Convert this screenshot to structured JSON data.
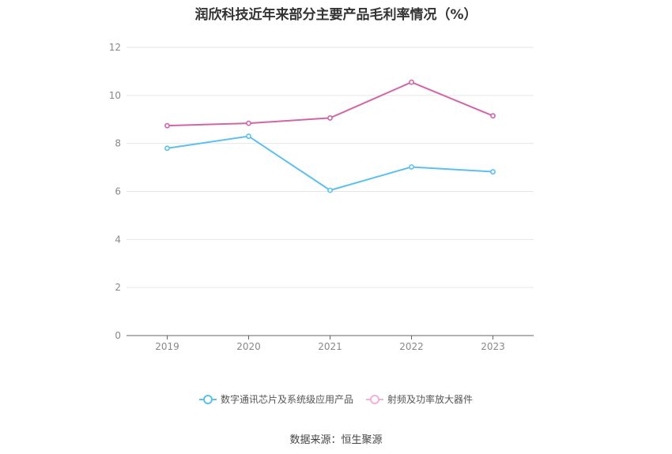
{
  "chart_data": {
    "type": "line",
    "title": "润欣科技近年来部分主要产品毛利率情况（%）",
    "categories": [
      "2019",
      "2020",
      "2021",
      "2022",
      "2023"
    ],
    "series": [
      {
        "name": "数字通讯芯片及系统级应用产品",
        "color": "#5bc0f0",
        "values": [
          7.8,
          8.3,
          6.05,
          7.02,
          6.82
        ]
      },
      {
        "name": "射频及功率放大器件",
        "color": "#d264a8",
        "values": [
          8.74,
          8.84,
          9.06,
          10.55,
          9.15
        ]
      }
    ],
    "ylim": [
      0,
      12
    ],
    "yticks": [
      0,
      2,
      4,
      6,
      8,
      10,
      12
    ],
    "grid": true,
    "legend": "bottom"
  },
  "source": "数据来源：恒生聚源"
}
